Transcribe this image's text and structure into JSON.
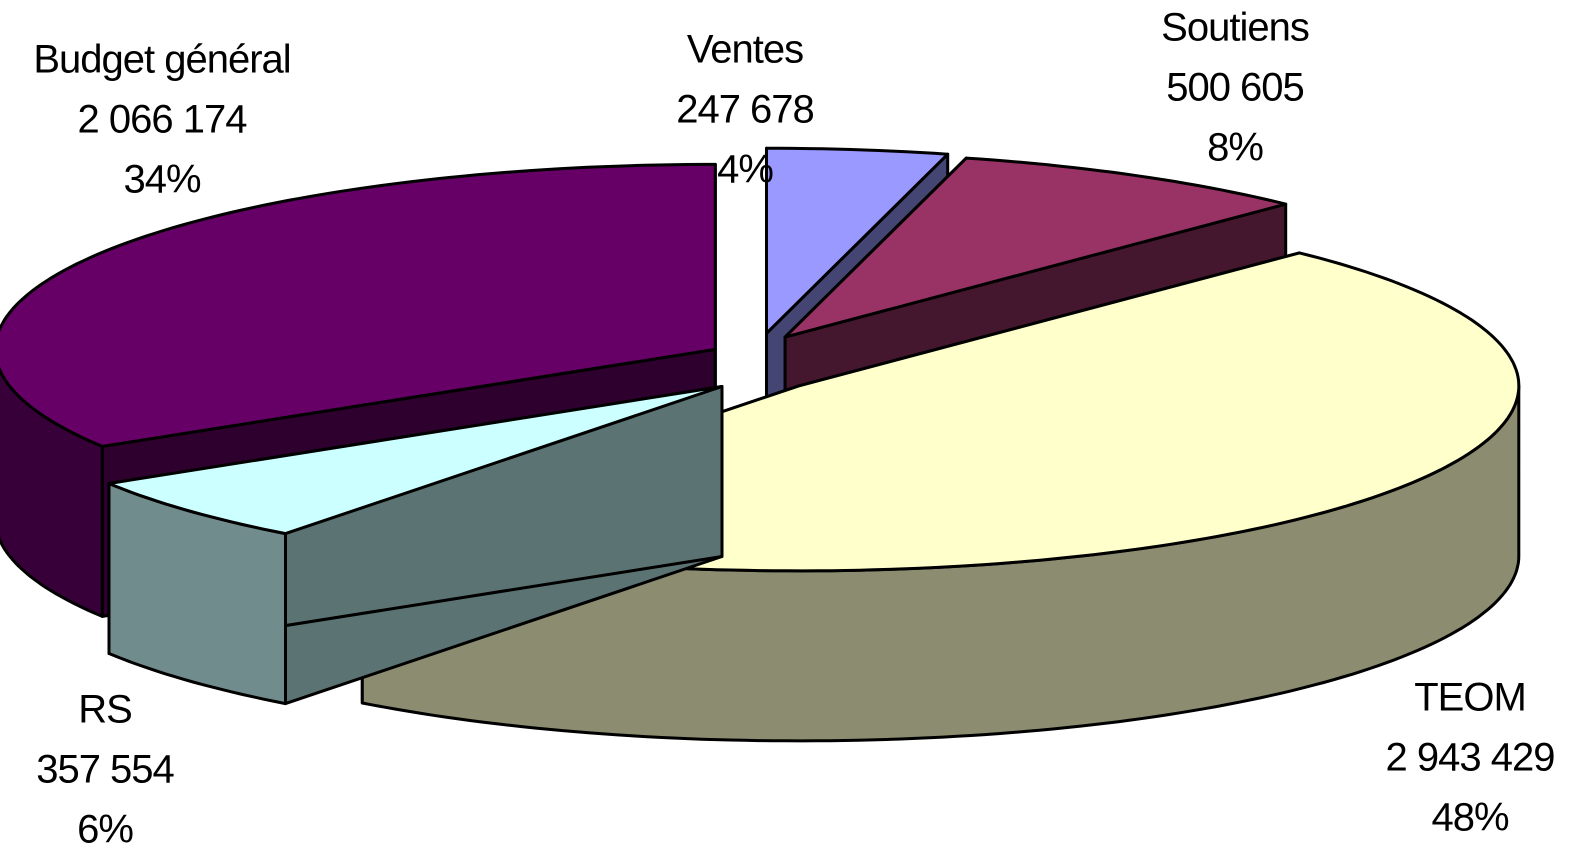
{
  "chart_data": {
    "type": "pie3d",
    "categories": [
      "Ventes",
      "Soutiens",
      "TEOM",
      "RS",
      "Budget général"
    ],
    "values": [
      247678,
      500605,
      2943429,
      357554,
      2066174
    ],
    "value_labels": [
      "247 678",
      "500 605",
      "2 943 429",
      "357 554",
      "2 066 174"
    ],
    "percent_labels": [
      "4%",
      "8%",
      "48%",
      "6%",
      "34%"
    ],
    "colors": [
      "#9999ff",
      "#993366",
      "#ffffcc",
      "#ccffff",
      "#660066"
    ]
  }
}
